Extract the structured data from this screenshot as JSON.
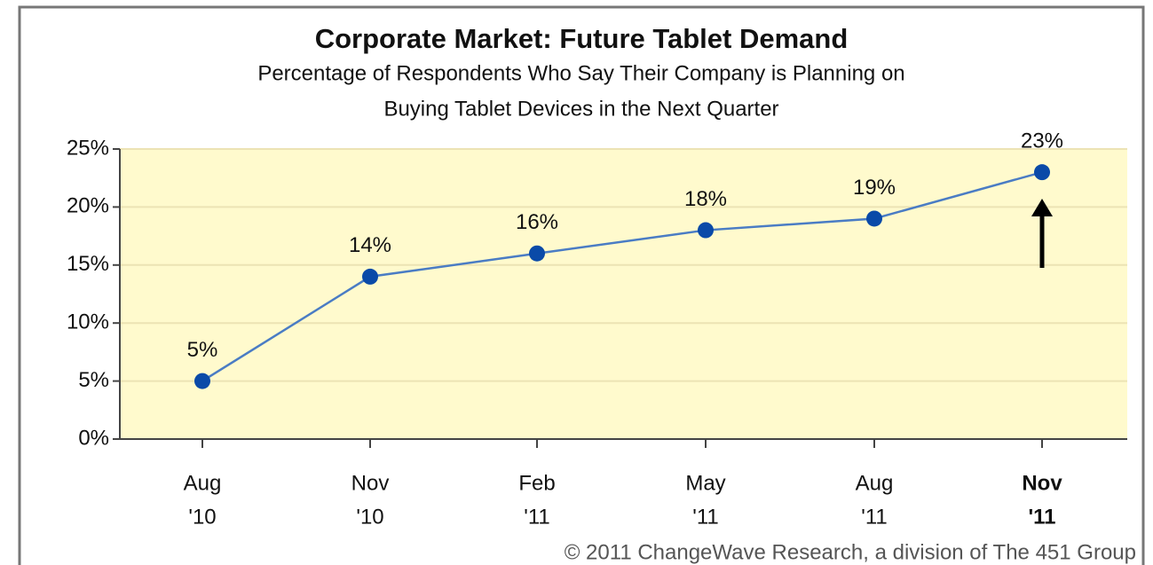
{
  "chart_data": {
    "type": "line",
    "title": "Corporate Market: Future Tablet Demand",
    "subtitle": [
      "Percentage of Respondents Who Say Their Company is Planning on",
      "Buying Tablet Devices in the Next Quarter"
    ],
    "categories": [
      [
        "Aug",
        "'10"
      ],
      [
        "Nov",
        "'10"
      ],
      [
        "Feb",
        "'11"
      ],
      [
        "May",
        "'11"
      ],
      [
        "Aug",
        "'11"
      ],
      [
        "Nov",
        "'11"
      ]
    ],
    "values": [
      5,
      14,
      16,
      18,
      19,
      23
    ],
    "value_labels": [
      "5%",
      "14%",
      "16%",
      "18%",
      "19%",
      "23%"
    ],
    "color": "#0a4aa8",
    "line_color": "#4a7cc4",
    "ylim": [
      0,
      25
    ],
    "yticks": [
      {
        "value": 0,
        "label": "0%"
      },
      {
        "value": 5,
        "label": "5%"
      },
      {
        "value": 10,
        "label": "10%"
      },
      {
        "value": 15,
        "label": "15%"
      },
      {
        "value": 20,
        "label": "20%"
      },
      {
        "value": 25,
        "label": "25%"
      }
    ],
    "grid": true,
    "bold_category": 5,
    "source": "© 2011 ChangeWave Research, a division of The 451 Group"
  }
}
